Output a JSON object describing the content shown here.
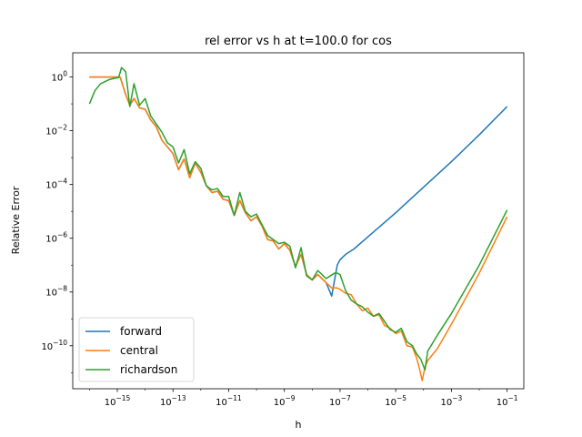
{
  "chart_data": {
    "type": "line",
    "title": "rel error vs h at t=100.0 for cos",
    "xlabel": "h",
    "ylabel": "Relative Error",
    "xscale": "log",
    "yscale": "log",
    "xlim_exp": [
      -16.6,
      -0.4
    ],
    "ylim_exp": [
      -11.6,
      0.9
    ],
    "x_tick_exponents": [
      -15,
      -13,
      -11,
      -9,
      -7,
      -5,
      -3,
      -1
    ],
    "y_tick_exponents": [
      0,
      -2,
      -4,
      -6,
      -8,
      -10
    ],
    "grid": false,
    "legend_position": "lower-left",
    "series": [
      {
        "name": "forward",
        "color": "#1f77b4",
        "points": [
          [
            -16.0,
            0.0
          ],
          [
            -15.1,
            0.0
          ],
          [
            -14.9,
            0.0
          ],
          [
            -14.7,
            -0.65
          ],
          [
            -14.55,
            -1.05
          ],
          [
            -14.4,
            -0.8
          ],
          [
            -14.2,
            -1.15
          ],
          [
            -14.0,
            -1.2
          ],
          [
            -13.8,
            -1.6
          ],
          [
            -13.6,
            -1.85
          ],
          [
            -13.4,
            -2.35
          ],
          [
            -13.2,
            -2.6
          ],
          [
            -13.0,
            -2.85
          ],
          [
            -12.8,
            -3.45
          ],
          [
            -12.6,
            -3.05
          ],
          [
            -12.4,
            -3.75
          ],
          [
            -12.2,
            -3.2
          ],
          [
            -12.0,
            -3.55
          ],
          [
            -11.8,
            -4.05
          ],
          [
            -11.6,
            -4.3
          ],
          [
            -11.4,
            -4.25
          ],
          [
            -11.2,
            -4.55
          ],
          [
            -11.0,
            -4.6
          ],
          [
            -10.8,
            -5.15
          ],
          [
            -10.6,
            -4.6
          ],
          [
            -10.4,
            -5.05
          ],
          [
            -10.2,
            -5.35
          ],
          [
            -10.0,
            -5.2
          ],
          [
            -9.8,
            -5.55
          ],
          [
            -9.6,
            -6.05
          ],
          [
            -9.4,
            -6.1
          ],
          [
            -9.2,
            -6.4
          ],
          [
            -9.0,
            -6.2
          ],
          [
            -8.8,
            -6.45
          ],
          [
            -8.6,
            -7.05
          ],
          [
            -8.4,
            -6.6
          ],
          [
            -8.2,
            -7.35
          ],
          [
            -8.0,
            -7.55
          ],
          [
            -7.8,
            -7.35
          ],
          [
            -7.5,
            -7.65
          ],
          [
            -7.3,
            -8.15
          ],
          [
            -7.1,
            -7.0
          ],
          [
            -7.0,
            -6.8
          ],
          [
            -6.8,
            -6.6
          ],
          [
            -6.5,
            -6.4
          ],
          [
            -6.0,
            -5.95
          ],
          [
            -5.0,
            -5.05
          ],
          [
            -4.0,
            -4.1
          ],
          [
            -3.0,
            -3.15
          ],
          [
            -2.0,
            -2.15
          ],
          [
            -1.0,
            -1.1
          ]
        ]
      },
      {
        "name": "central",
        "color": "#ff7f0e",
        "points": [
          [
            -16.0,
            0.0
          ],
          [
            -15.1,
            0.0
          ],
          [
            -14.9,
            0.0
          ],
          [
            -14.7,
            -0.65
          ],
          [
            -14.55,
            -1.05
          ],
          [
            -14.4,
            -0.8
          ],
          [
            -14.2,
            -1.15
          ],
          [
            -14.0,
            -1.2
          ],
          [
            -13.8,
            -1.6
          ],
          [
            -13.6,
            -1.85
          ],
          [
            -13.4,
            -2.35
          ],
          [
            -13.2,
            -2.6
          ],
          [
            -13.0,
            -2.85
          ],
          [
            -12.8,
            -3.45
          ],
          [
            -12.6,
            -3.05
          ],
          [
            -12.4,
            -3.75
          ],
          [
            -12.2,
            -3.2
          ],
          [
            -12.0,
            -3.55
          ],
          [
            -11.8,
            -4.05
          ],
          [
            -11.6,
            -4.3
          ],
          [
            -11.4,
            -4.25
          ],
          [
            -11.2,
            -4.55
          ],
          [
            -11.0,
            -4.6
          ],
          [
            -10.8,
            -5.15
          ],
          [
            -10.6,
            -4.6
          ],
          [
            -10.4,
            -5.05
          ],
          [
            -10.2,
            -5.35
          ],
          [
            -10.0,
            -5.2
          ],
          [
            -9.8,
            -5.55
          ],
          [
            -9.6,
            -6.05
          ],
          [
            -9.4,
            -6.1
          ],
          [
            -9.2,
            -6.4
          ],
          [
            -9.0,
            -6.2
          ],
          [
            -8.8,
            -6.45
          ],
          [
            -8.6,
            -7.05
          ],
          [
            -8.4,
            -6.6
          ],
          [
            -8.2,
            -7.35
          ],
          [
            -8.0,
            -7.55
          ],
          [
            -7.8,
            -7.35
          ],
          [
            -7.5,
            -7.65
          ],
          [
            -7.3,
            -7.85
          ],
          [
            -7.1,
            -7.85
          ],
          [
            -7.0,
            -7.9
          ],
          [
            -6.8,
            -8.05
          ],
          [
            -6.6,
            -8.1
          ],
          [
            -6.4,
            -8.45
          ],
          [
            -6.2,
            -8.7
          ],
          [
            -6.0,
            -8.6
          ],
          [
            -5.8,
            -8.9
          ],
          [
            -5.6,
            -8.85
          ],
          [
            -5.4,
            -9.25
          ],
          [
            -5.2,
            -9.35
          ],
          [
            -5.0,
            -9.55
          ],
          [
            -4.8,
            -9.45
          ],
          [
            -4.6,
            -10.0
          ],
          [
            -4.4,
            -10.05
          ],
          [
            -4.25,
            -10.45
          ],
          [
            -4.15,
            -10.85
          ],
          [
            -4.05,
            -11.3
          ],
          [
            -3.95,
            -10.8
          ],
          [
            -3.85,
            -10.55
          ],
          [
            -3.5,
            -10.1
          ],
          [
            -3.0,
            -9.2
          ],
          [
            -2.0,
            -7.3
          ],
          [
            -1.0,
            -5.2
          ]
        ]
      },
      {
        "name": "richardson",
        "color": "#2ca02c",
        "points": [
          [
            -16.0,
            -1.0
          ],
          [
            -15.8,
            -0.5
          ],
          [
            -15.6,
            -0.25
          ],
          [
            -15.3,
            -0.1
          ],
          [
            -15.1,
            -0.05
          ],
          [
            -14.95,
            -0.02
          ],
          [
            -14.85,
            0.35
          ],
          [
            -14.7,
            0.2
          ],
          [
            -14.55,
            -1.1
          ],
          [
            -14.4,
            -0.25
          ],
          [
            -14.2,
            -1.05
          ],
          [
            -14.0,
            -0.8
          ],
          [
            -13.8,
            -1.45
          ],
          [
            -13.6,
            -1.75
          ],
          [
            -13.4,
            -2.05
          ],
          [
            -13.2,
            -2.45
          ],
          [
            -13.0,
            -2.6
          ],
          [
            -12.8,
            -3.2
          ],
          [
            -12.6,
            -2.7
          ],
          [
            -12.4,
            -3.6
          ],
          [
            -12.2,
            -3.15
          ],
          [
            -12.0,
            -3.4
          ],
          [
            -11.8,
            -4.05
          ],
          [
            -11.6,
            -4.2
          ],
          [
            -11.4,
            -4.15
          ],
          [
            -11.2,
            -4.45
          ],
          [
            -11.0,
            -4.45
          ],
          [
            -10.8,
            -5.15
          ],
          [
            -10.6,
            -4.3
          ],
          [
            -10.4,
            -5.0
          ],
          [
            -10.2,
            -5.2
          ],
          [
            -10.0,
            -5.1
          ],
          [
            -9.8,
            -5.5
          ],
          [
            -9.6,
            -5.9
          ],
          [
            -9.4,
            -6.05
          ],
          [
            -9.2,
            -6.2
          ],
          [
            -9.0,
            -6.15
          ],
          [
            -8.8,
            -6.3
          ],
          [
            -8.6,
            -7.1
          ],
          [
            -8.4,
            -6.35
          ],
          [
            -8.2,
            -7.4
          ],
          [
            -8.0,
            -7.55
          ],
          [
            -7.8,
            -7.2
          ],
          [
            -7.5,
            -7.5
          ],
          [
            -7.2,
            -7.3
          ],
          [
            -7.1,
            -7.3
          ],
          [
            -7.0,
            -7.35
          ],
          [
            -6.8,
            -7.95
          ],
          [
            -6.6,
            -8.3
          ],
          [
            -6.4,
            -8.45
          ],
          [
            -6.2,
            -8.55
          ],
          [
            -6.0,
            -8.75
          ],
          [
            -5.8,
            -8.9
          ],
          [
            -5.6,
            -8.8
          ],
          [
            -5.4,
            -9.1
          ],
          [
            -5.2,
            -9.4
          ],
          [
            -5.0,
            -9.5
          ],
          [
            -4.8,
            -9.35
          ],
          [
            -4.6,
            -9.85
          ],
          [
            -4.4,
            -10.0
          ],
          [
            -4.25,
            -10.3
          ],
          [
            -4.1,
            -10.5
          ],
          [
            -3.95,
            -10.9
          ],
          [
            -3.85,
            -10.2
          ],
          [
            -3.5,
            -9.6
          ],
          [
            -3.0,
            -8.8
          ],
          [
            -2.0,
            -7.0
          ],
          [
            -1.0,
            -4.95
          ]
        ]
      }
    ]
  }
}
